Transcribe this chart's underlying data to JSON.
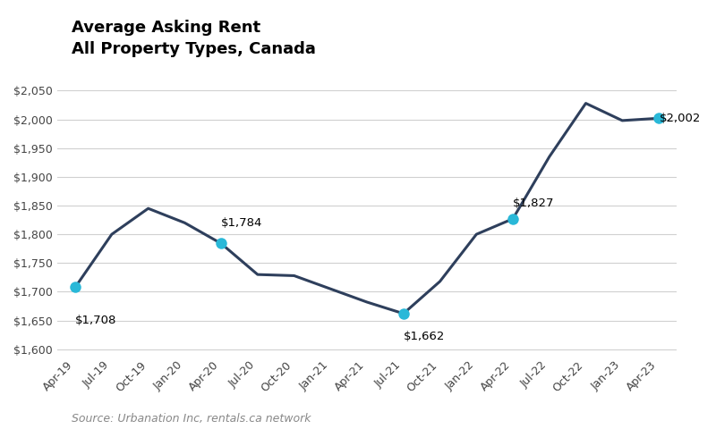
{
  "title_line1": "Average Asking Rent",
  "title_line2": "All Property Types, Canada",
  "source": "Source: Urbanation Inc, rentals.ca network",
  "line_color": "#2e3f5c",
  "highlight_color": "#29b8d8",
  "background_color": "#ffffff",
  "grid_color": "#d0d0d0",
  "x_labels": [
    "Apr-19",
    "Jul-19",
    "Oct-19",
    "Jan-20",
    "Apr-20",
    "Jul-20",
    "Oct-20",
    "Jan-21",
    "Apr-21",
    "Jul-21",
    "Oct-21",
    "Jan-22",
    "Apr-22",
    "Jul-22",
    "Oct-22",
    "Jan-23",
    "Apr-23"
  ],
  "y_values": [
    1708,
    1800,
    1845,
    1820,
    1784,
    1730,
    1728,
    1705,
    1682,
    1662,
    1718,
    1800,
    1827,
    1935,
    2028,
    1998,
    2002
  ],
  "highlighted_indices": [
    0,
    4,
    9,
    12,
    16
  ],
  "annotations": [
    {
      "index": 0,
      "label": "$1,708",
      "xoff": -0.3,
      "yoff": -22,
      "ha": "left",
      "va": "top"
    },
    {
      "index": 4,
      "label": "$1,784",
      "xoff": 0.2,
      "yoff": 12,
      "ha": "left",
      "va": "bottom"
    },
    {
      "index": 9,
      "label": "$1,662",
      "xoff": 0.2,
      "yoff": -14,
      "ha": "left",
      "va": "top"
    },
    {
      "index": 12,
      "label": "$1,827",
      "xoff": 0.2,
      "yoff": 8,
      "ha": "left",
      "va": "bottom"
    },
    {
      "index": 16,
      "label": "$2,002",
      "xoff": 0.35,
      "yoff": 0,
      "ha": "left",
      "va": "center"
    }
  ],
  "ylim": [
    1590,
    2065
  ],
  "yticks": [
    1600,
    1650,
    1700,
    1750,
    1800,
    1850,
    1900,
    1950,
    2000,
    2050
  ],
  "line_width": 2.2,
  "marker_size": 9,
  "title_fontsize": 13,
  "tick_fontsize": 9,
  "annot_fontsize": 9.5
}
